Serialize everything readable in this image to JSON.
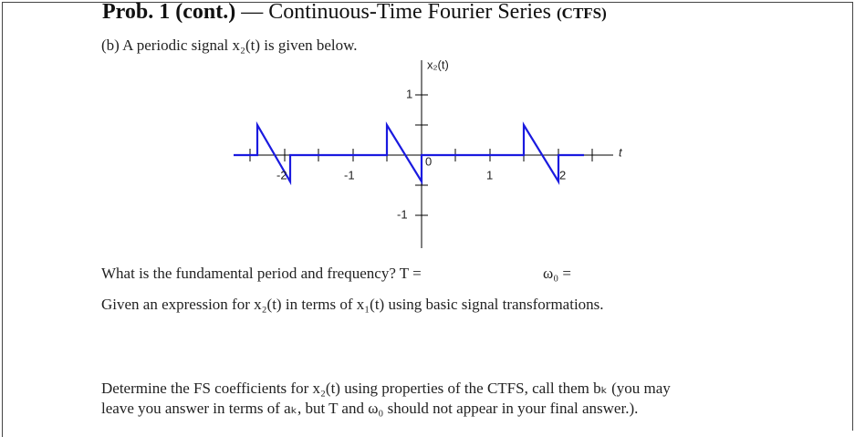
{
  "header": {
    "title": "Prob. 1 (cont.)",
    "subtitle": " — Continuous-Time Fourier Series",
    "abbrev": "(CTFS)"
  },
  "body": {
    "part_b": "(b) A periodic signal x₂(t) is given below.",
    "q_period": "What is the fundamental period and frequency? T =",
    "q_freq": "ω₀ =",
    "q_expr": "Given an expression for x₂(t) in terms of x₁(t) using basic signal transformations.",
    "q_fs": [
      "Determine the FS coefficients for x₂(t) using properties of the CTFS, call them bₖ (you may",
      "leave you answer in terms of aₖ, but T and ω₀ should not appear in your final answer.)."
    ]
  },
  "plot": {
    "y_label": "x₂(t)",
    "t_label": "t",
    "origin": "0",
    "t_ticks": [
      "-2",
      "-1",
      "1",
      "2"
    ],
    "x_ticks": [
      "1",
      "-1"
    ]
  }
}
